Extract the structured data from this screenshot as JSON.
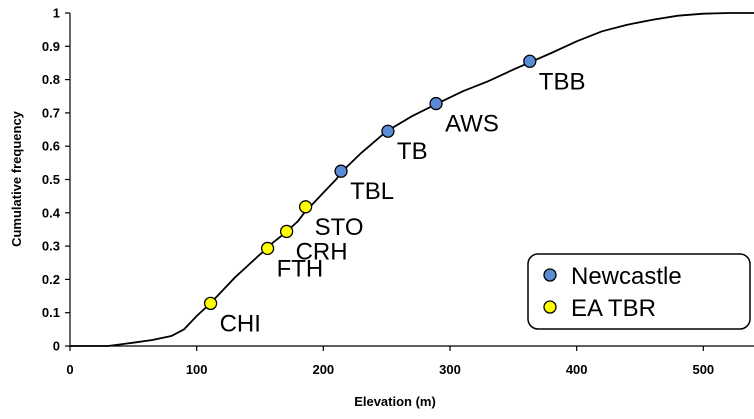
{
  "chart_data": {
    "type": "line",
    "title": "",
    "xlabel": "Elevation (m)",
    "ylabel": "Cumulative frequency",
    "xlim": [
      0,
      540
    ],
    "ylim": [
      0,
      1
    ],
    "xticks": [
      0,
      100,
      200,
      300,
      400,
      500
    ],
    "yticks": [
      0,
      0.1,
      0.2,
      0.3,
      0.4,
      0.5,
      0.6,
      0.7,
      0.8,
      0.9,
      1
    ],
    "grid": false,
    "legend_position": "bottom-right",
    "curve": {
      "x": [
        0,
        30,
        50,
        65,
        80,
        90,
        100,
        110,
        120,
        130,
        140,
        150,
        155,
        160,
        170,
        180,
        185,
        190,
        200,
        210,
        215,
        230,
        250,
        270,
        290,
        310,
        330,
        350,
        365,
        380,
        400,
        420,
        440,
        460,
        480,
        500,
        520,
        540
      ],
      "y": [
        0,
        0,
        0.01,
        0.018,
        0.03,
        0.05,
        0.09,
        0.125,
        0.165,
        0.205,
        0.24,
        0.275,
        0.29,
        0.31,
        0.34,
        0.375,
        0.4,
        0.42,
        0.46,
        0.5,
        0.525,
        0.58,
        0.645,
        0.69,
        0.728,
        0.765,
        0.795,
        0.83,
        0.855,
        0.88,
        0.915,
        0.945,
        0.965,
        0.98,
        0.992,
        0.998,
        1,
        1
      ]
    },
    "series": [
      {
        "name": "Newcastle",
        "color": "#5b8bd5",
        "points": [
          {
            "label": "TBL",
            "x": 214,
            "y": 0.525
          },
          {
            "label": "TB",
            "x": 251,
            "y": 0.645
          },
          {
            "label": "AWS",
            "x": 289,
            "y": 0.728
          },
          {
            "label": "TBB",
            "x": 363,
            "y": 0.855
          }
        ]
      },
      {
        "name": "EA TBR",
        "color": "#ffff00",
        "points": [
          {
            "label": "CHI",
            "x": 111,
            "y": 0.128
          },
          {
            "label": "FTH",
            "x": 156,
            "y": 0.293
          },
          {
            "label": "CRH",
            "x": 171,
            "y": 0.344
          },
          {
            "label": "STO",
            "x": 186,
            "y": 0.418
          }
        ]
      }
    ]
  }
}
